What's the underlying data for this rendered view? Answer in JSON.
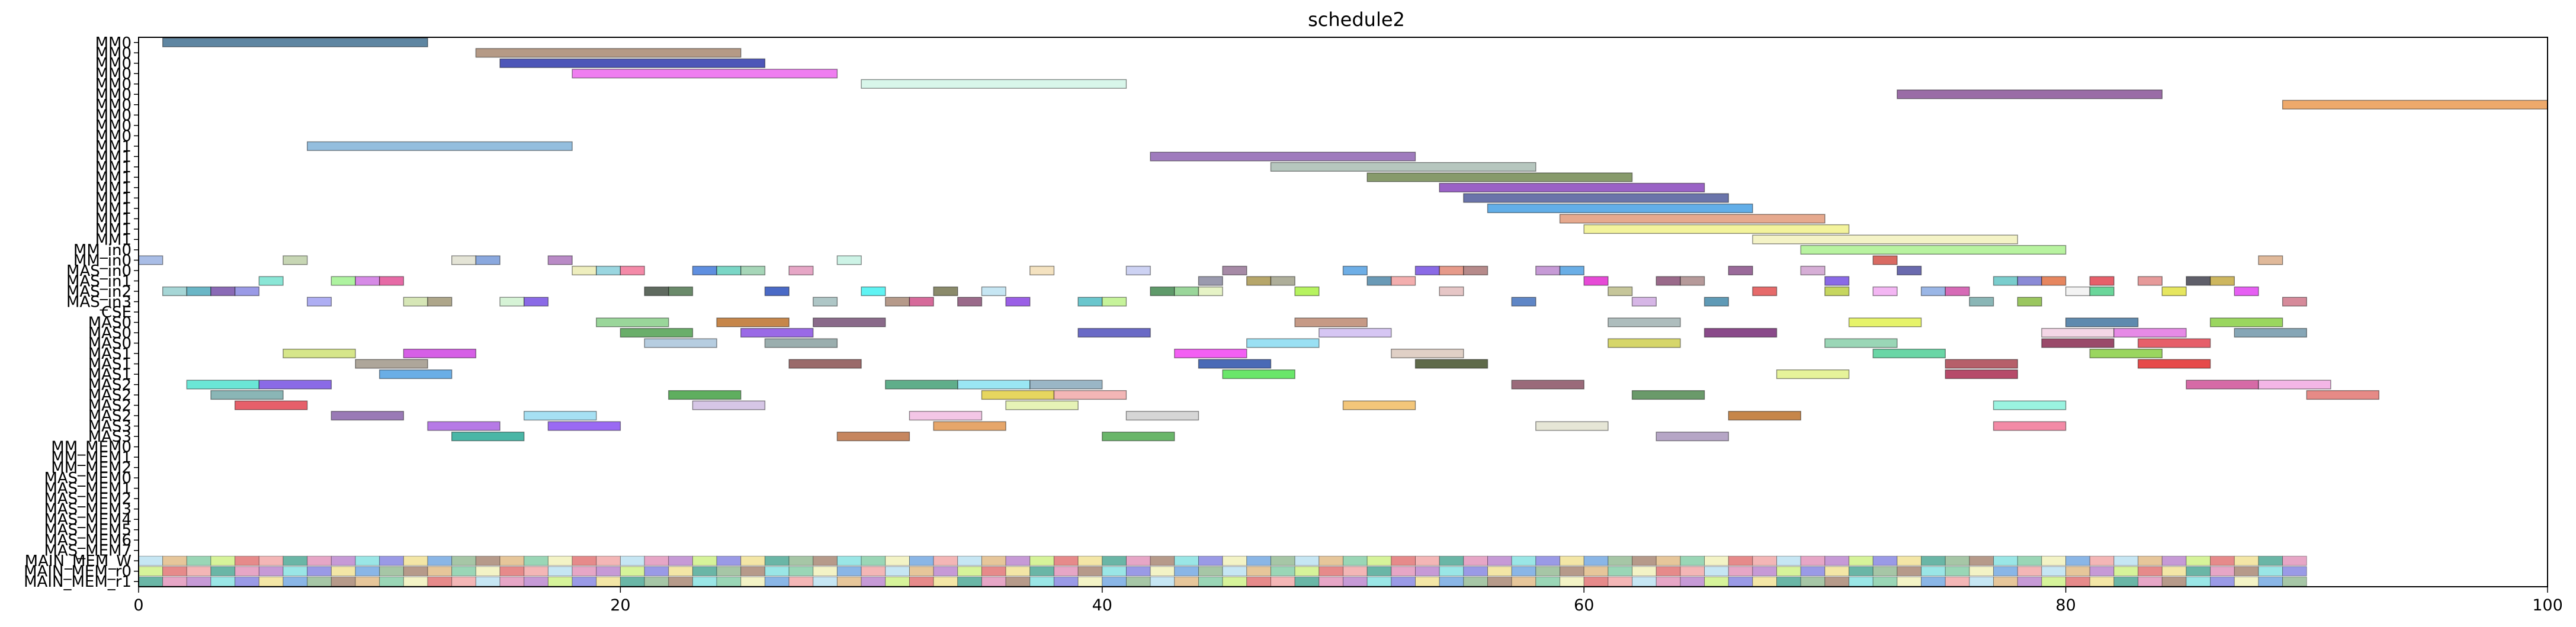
{
  "chart_data": {
    "type": "gantt",
    "title": "schedule2",
    "xlim": [
      0,
      100
    ],
    "x_ticks": [
      0,
      20,
      40,
      60,
      80,
      100
    ],
    "x_tick_labels": [
      "0",
      "20",
      "40",
      "60",
      "80",
      "100"
    ],
    "y_labels": [
      "MM0",
      "MM0",
      "MM0",
      "MM0",
      "MM0",
      "MM0",
      "MM0",
      "MM0",
      "MM0",
      "MM0",
      "MM1",
      "MM1",
      "MM1",
      "MM1",
      "MM1",
      "MM1",
      "MM1",
      "MM1",
      "MM1",
      "MM1",
      "MM_in0",
      "MM_in0",
      "MAS_in0",
      "MAS_in1",
      "MAS_in2",
      "MAS_in3",
      "CSE",
      "MAS0",
      "MAS0",
      "MAS0",
      "MAS1",
      "MAS1",
      "MAS1",
      "MAS2",
      "MAS2",
      "MAS2",
      "MAS2",
      "MAS3",
      "MAS3",
      "MM_MEM0",
      "MM_MEM1",
      "MM_MEM2",
      "MAS_MEM0",
      "MAS_MEM1",
      "MAS_MEM2",
      "MAS_MEM3",
      "MAS_MEM4",
      "MAS_MEM5",
      "MAS_MEM6",
      "MAS_MEM7",
      "MAIN_MEM_W",
      "MAIN_MEM_r0",
      "MAIN_MEM_r1"
    ],
    "series": [
      {
        "row": 0,
        "start": 1,
        "end": 12,
        "color": "#5f86a2"
      },
      {
        "row": 1,
        "start": 14,
        "end": 25,
        "color": "#b59a86"
      },
      {
        "row": 2,
        "start": 15,
        "end": 26,
        "color": "#4d56b8"
      },
      {
        "row": 3,
        "start": 18,
        "end": 29,
        "color": "#ef7ef0"
      },
      {
        "row": 4,
        "start": 30,
        "end": 41,
        "color": "#d8f6ea"
      },
      {
        "row": 5,
        "start": 73,
        "end": 84,
        "color": "#9a6ca6"
      },
      {
        "row": 6,
        "start": 89,
        "end": 100,
        "color": "#eea96b"
      },
      {
        "row": 10,
        "start": 7,
        "end": 18,
        "color": "#94bede"
      },
      {
        "row": 11,
        "start": 42,
        "end": 53,
        "color": "#9f7bbd"
      },
      {
        "row": 12,
        "start": 47,
        "end": 58,
        "color": "#b6c6be"
      },
      {
        "row": 13,
        "start": 51,
        "end": 62,
        "color": "#879a6b"
      },
      {
        "row": 14,
        "start": 54,
        "end": 65,
        "color": "#9a62c6"
      },
      {
        "row": 15,
        "start": 55,
        "end": 66,
        "color": "#6a74aa"
      },
      {
        "row": 16,
        "start": 56,
        "end": 67,
        "color": "#62aee8"
      },
      {
        "row": 17,
        "start": 59,
        "end": 70,
        "color": "#e6a98e"
      },
      {
        "row": 18,
        "start": 60,
        "end": 71,
        "color": "#f3f39c"
      },
      {
        "row": 19,
        "start": 67,
        "end": 78,
        "color": "#f4f3c6"
      },
      {
        "row": 20,
        "start": 69,
        "end": 80,
        "color": "#b8f3a0"
      },
      {
        "row": 21,
        "start": 0,
        "end": 1,
        "color": "#a9bde6"
      },
      {
        "row": 21,
        "start": 6,
        "end": 7,
        "color": "#c7d6b4"
      },
      {
        "row": 21,
        "start": 13,
        "end": 14,
        "color": "#e4e4d6"
      },
      {
        "row": 21,
        "start": 14,
        "end": 15,
        "color": "#8aa8de"
      },
      {
        "row": 21,
        "start": 17,
        "end": 18,
        "color": "#b98ac6"
      },
      {
        "row": 21,
        "start": 29,
        "end": 30,
        "color": "#cdf3e6"
      },
      {
        "row": 21,
        "start": 72,
        "end": 73,
        "color": "#d96a62"
      },
      {
        "row": 21,
        "start": 88,
        "end": 89,
        "color": "#e0b99a"
      },
      {
        "row": 22,
        "start": 18,
        "end": 19,
        "color": "#eeeebe"
      },
      {
        "row": 22,
        "start": 19,
        "end": 20,
        "color": "#9ad6e0"
      },
      {
        "row": 22,
        "start": 20,
        "end": 21,
        "color": "#f48aa8"
      },
      {
        "row": 22,
        "start": 23,
        "end": 24,
        "color": "#5f8fe0"
      },
      {
        "row": 22,
        "start": 24,
        "end": 25,
        "color": "#7ad6c6"
      },
      {
        "row": 22,
        "start": 25,
        "end": 26,
        "color": "#a6d6b8"
      },
      {
        "row": 22,
        "start": 27,
        "end": 28,
        "color": "#e6a6c6"
      },
      {
        "row": 22,
        "start": 37,
        "end": 38,
        "color": "#f4e2c0"
      },
      {
        "row": 22,
        "start": 41,
        "end": 42,
        "color": "#cdd2f3"
      },
      {
        "row": 22,
        "start": 45,
        "end": 46,
        "color": "#a68aa6"
      },
      {
        "row": 22,
        "start": 50,
        "end": 51,
        "color": "#6eaee6"
      },
      {
        "row": 22,
        "start": 53,
        "end": 54,
        "color": "#8a6ae6"
      },
      {
        "row": 22,
        "start": 54,
        "end": 55,
        "color": "#e69a8a"
      },
      {
        "row": 22,
        "start": 55,
        "end": 56,
        "color": "#b68a8a"
      },
      {
        "row": 22,
        "start": 58,
        "end": 59,
        "color": "#c69ad6"
      },
      {
        "row": 22,
        "start": 59,
        "end": 60,
        "color": "#6aaee6"
      },
      {
        "row": 22,
        "start": 66,
        "end": 67,
        "color": "#9a6a9a"
      },
      {
        "row": 22,
        "start": 69,
        "end": 70,
        "color": "#d6aed6"
      },
      {
        "row": 22,
        "start": 73,
        "end": 74,
        "color": "#6a6aae"
      },
      {
        "row": 23,
        "start": 5,
        "end": 6,
        "color": "#8ae6d6"
      },
      {
        "row": 23,
        "start": 8,
        "end": 9,
        "color": "#aef3a0"
      },
      {
        "row": 23,
        "start": 9,
        "end": 10,
        "color": "#d68ae6"
      },
      {
        "row": 23,
        "start": 10,
        "end": 11,
        "color": "#e66aa6"
      },
      {
        "row": 23,
        "start": 44,
        "end": 45,
        "color": "#9a9aae"
      },
      {
        "row": 23,
        "start": 46,
        "end": 47,
        "color": "#b6a66a"
      },
      {
        "row": 23,
        "start": 47,
        "end": 48,
        "color": "#aeae9a"
      },
      {
        "row": 23,
        "start": 51,
        "end": 52,
        "color": "#6a9ab6"
      },
      {
        "row": 23,
        "start": 52,
        "end": 53,
        "color": "#f3aeae"
      },
      {
        "row": 23,
        "start": 60,
        "end": 61,
        "color": "#e64ad6"
      },
      {
        "row": 23,
        "start": 63,
        "end": 64,
        "color": "#9a6a8a"
      },
      {
        "row": 23,
        "start": 64,
        "end": 65,
        "color": "#b69a9a"
      },
      {
        "row": 23,
        "start": 70,
        "end": 71,
        "color": "#8a6ae6"
      },
      {
        "row": 23,
        "start": 77,
        "end": 78,
        "color": "#7acdcd"
      },
      {
        "row": 23,
        "start": 78,
        "end": 79,
        "color": "#8a8ad6"
      },
      {
        "row": 23,
        "start": 79,
        "end": 80,
        "color": "#e6865f"
      },
      {
        "row": 23,
        "start": 81,
        "end": 82,
        "color": "#e65f6a"
      },
      {
        "row": 23,
        "start": 83,
        "end": 84,
        "color": "#e69a9a"
      },
      {
        "row": 23,
        "start": 85,
        "end": 86,
        "color": "#5f5f6a"
      },
      {
        "row": 23,
        "start": 86,
        "end": 87,
        "color": "#cdb65f"
      },
      {
        "row": 24,
        "start": 1,
        "end": 2,
        "color": "#a6d6d6"
      },
      {
        "row": 24,
        "start": 2,
        "end": 3,
        "color": "#6ab6c6"
      },
      {
        "row": 24,
        "start": 3,
        "end": 4,
        "color": "#8a6ab6"
      },
      {
        "row": 24,
        "start": 4,
        "end": 5,
        "color": "#9a9ae6"
      },
      {
        "row": 24,
        "start": 21,
        "end": 22,
        "color": "#5f6a5f"
      },
      {
        "row": 24,
        "start": 22,
        "end": 23,
        "color": "#6a8a6a"
      },
      {
        "row": 24,
        "start": 26,
        "end": 27,
        "color": "#4a6ac6"
      },
      {
        "row": 24,
        "start": 30,
        "end": 31,
        "color": "#5ff3f3"
      },
      {
        "row": 24,
        "start": 33,
        "end": 34,
        "color": "#8a8a6a"
      },
      {
        "row": 24,
        "start": 35,
        "end": 36,
        "color": "#c6e6f3"
      },
      {
        "row": 24,
        "start": 42,
        "end": 43,
        "color": "#5f9a6a"
      },
      {
        "row": 24,
        "start": 43,
        "end": 44,
        "color": "#9ad69a"
      },
      {
        "row": 24,
        "start": 44,
        "end": 45,
        "color": "#e6f3c6"
      },
      {
        "row": 24,
        "start": 48,
        "end": 49,
        "color": "#b6f35f"
      },
      {
        "row": 24,
        "start": 54,
        "end": 55,
        "color": "#e6c6c6"
      },
      {
        "row": 24,
        "start": 61,
        "end": 62,
        "color": "#c6c69a"
      },
      {
        "row": 24,
        "start": 67,
        "end": 68,
        "color": "#e66a6a"
      },
      {
        "row": 24,
        "start": 70,
        "end": 71,
        "color": "#c6d65f"
      },
      {
        "row": 24,
        "start": 72,
        "end": 73,
        "color": "#f3b6f3"
      },
      {
        "row": 24,
        "start": 74,
        "end": 75,
        "color": "#9ab6e6"
      },
      {
        "row": 24,
        "start": 75,
        "end": 76,
        "color": "#d66ab6"
      },
      {
        "row": 24,
        "start": 80,
        "end": 81,
        "color": "#f3f3f3"
      },
      {
        "row": 24,
        "start": 81,
        "end": 82,
        "color": "#6ad69a"
      },
      {
        "row": 24,
        "start": 84,
        "end": 85,
        "color": "#e6e65f"
      },
      {
        "row": 24,
        "start": 87,
        "end": 88,
        "color": "#e65ff3"
      },
      {
        "row": 25,
        "start": 7,
        "end": 8,
        "color": "#aeaef3"
      },
      {
        "row": 25,
        "start": 11,
        "end": 12,
        "color": "#d6e6b6"
      },
      {
        "row": 25,
        "start": 12,
        "end": 13,
        "color": "#aea68a"
      },
      {
        "row": 25,
        "start": 15,
        "end": 16,
        "color": "#d6f3d6"
      },
      {
        "row": 25,
        "start": 16,
        "end": 17,
        "color": "#8a6ae6"
      },
      {
        "row": 25,
        "start": 28,
        "end": 29,
        "color": "#aec6c6"
      },
      {
        "row": 25,
        "start": 31,
        "end": 32,
        "color": "#b69a8a"
      },
      {
        "row": 25,
        "start": 32,
        "end": 33,
        "color": "#d66a9a"
      },
      {
        "row": 25,
        "start": 34,
        "end": 35,
        "color": "#9a6a8a"
      },
      {
        "row": 25,
        "start": 36,
        "end": 37,
        "color": "#9a5fe6"
      },
      {
        "row": 25,
        "start": 39,
        "end": 40,
        "color": "#6ac6cd"
      },
      {
        "row": 25,
        "start": 40,
        "end": 41,
        "color": "#c6f39a"
      },
      {
        "row": 25,
        "start": 57,
        "end": 58,
        "color": "#5f86c6"
      },
      {
        "row": 25,
        "start": 62,
        "end": 63,
        "color": "#d6b6e6"
      },
      {
        "row": 25,
        "start": 65,
        "end": 66,
        "color": "#5f9ab6"
      },
      {
        "row": 25,
        "start": 76,
        "end": 77,
        "color": "#8ab6b6"
      },
      {
        "row": 25,
        "start": 78,
        "end": 79,
        "color": "#9ac65f"
      },
      {
        "row": 25,
        "start": 89,
        "end": 90,
        "color": "#d68a9a"
      },
      {
        "row": 27,
        "start": 19,
        "end": 22,
        "color": "#9ad69a"
      },
      {
        "row": 27,
        "start": 24,
        "end": 27,
        "color": "#c6864a"
      },
      {
        "row": 27,
        "start": 28,
        "end": 31,
        "color": "#8a6a8a"
      },
      {
        "row": 27,
        "start": 48,
        "end": 51,
        "color": "#c69a86"
      },
      {
        "row": 27,
        "start": 61,
        "end": 64,
        "color": "#aebdbd"
      },
      {
        "row": 27,
        "start": 71,
        "end": 74,
        "color": "#e6f36a"
      },
      {
        "row": 27,
        "start": 80,
        "end": 83,
        "color": "#5f8aae"
      },
      {
        "row": 27,
        "start": 86,
        "end": 89,
        "color": "#9ad65f"
      },
      {
        "row": 28,
        "start": 20,
        "end": 23,
        "color": "#6aae6a"
      },
      {
        "row": 28,
        "start": 25,
        "end": 28,
        "color": "#9a6ae6"
      },
      {
        "row": 28,
        "start": 39,
        "end": 42,
        "color": "#6a6ac6"
      },
      {
        "row": 28,
        "start": 49,
        "end": 52,
        "color": "#d6c6f3"
      },
      {
        "row": 28,
        "start": 65,
        "end": 68,
        "color": "#8a4a8a"
      },
      {
        "row": 28,
        "start": 79,
        "end": 82,
        "color": "#f3d6e6"
      },
      {
        "row": 28,
        "start": 82,
        "end": 85,
        "color": "#e68ae6"
      },
      {
        "row": 28,
        "start": 87,
        "end": 90,
        "color": "#86a6b6"
      },
      {
        "row": 29,
        "start": 21,
        "end": 24,
        "color": "#b6cde0"
      },
      {
        "row": 29,
        "start": 26,
        "end": 29,
        "color": "#9aaeae"
      },
      {
        "row": 29,
        "start": 46,
        "end": 49,
        "color": "#9ae0f3"
      },
      {
        "row": 29,
        "start": 61,
        "end": 64,
        "color": "#d6d66a"
      },
      {
        "row": 29,
        "start": 70,
        "end": 73,
        "color": "#9ad6b6"
      },
      {
        "row": 29,
        "start": 79,
        "end": 82,
        "color": "#9a4a6a"
      },
      {
        "row": 29,
        "start": 83,
        "end": 86,
        "color": "#e65f6a"
      },
      {
        "row": 30,
        "start": 6,
        "end": 9,
        "color": "#d6e68a"
      },
      {
        "row": 30,
        "start": 11,
        "end": 14,
        "color": "#d65fe6"
      },
      {
        "row": 30,
        "start": 43,
        "end": 46,
        "color": "#f35ff3"
      },
      {
        "row": 30,
        "start": 52,
        "end": 55,
        "color": "#e0d0c6"
      },
      {
        "row": 30,
        "start": 72,
        "end": 75,
        "color": "#6ad6a6"
      },
      {
        "row": 30,
        "start": 81,
        "end": 84,
        "color": "#9ad65f"
      },
      {
        "row": 31,
        "start": 9,
        "end": 12,
        "color": "#aea69a"
      },
      {
        "row": 31,
        "start": 27,
        "end": 30,
        "color": "#9a6a6a"
      },
      {
        "row": 31,
        "start": 44,
        "end": 47,
        "color": "#4a6ab6"
      },
      {
        "row": 31,
        "start": 53,
        "end": 56,
        "color": "#5f6a4a"
      },
      {
        "row": 31,
        "start": 75,
        "end": 78,
        "color": "#b65f6a"
      },
      {
        "row": 31,
        "start": 83,
        "end": 86,
        "color": "#e64a4a"
      },
      {
        "row": 32,
        "start": 10,
        "end": 13,
        "color": "#6aaee6"
      },
      {
        "row": 32,
        "start": 45,
        "end": 48,
        "color": "#6ae66a"
      },
      {
        "row": 32,
        "start": 68,
        "end": 71,
        "color": "#e6f39a"
      },
      {
        "row": 32,
        "start": 75,
        "end": 78,
        "color": "#b64a6a"
      },
      {
        "row": 33,
        "start": 2,
        "end": 5,
        "color": "#6ae6d6"
      },
      {
        "row": 33,
        "start": 5,
        "end": 8,
        "color": "#8a6ae6"
      },
      {
        "row": 33,
        "start": 34,
        "end": 37,
        "color": "#9ae6f3"
      },
      {
        "row": 33,
        "start": 37,
        "end": 40,
        "color": "#9ab6c6"
      },
      {
        "row": 33,
        "start": 31,
        "end": 34,
        "color": "#5fae8a"
      },
      {
        "row": 33,
        "start": 57,
        "end": 60,
        "color": "#9a6a7a"
      },
      {
        "row": 33,
        "start": 85,
        "end": 88,
        "color": "#d66aa6"
      },
      {
        "row": 33,
        "start": 88,
        "end": 91,
        "color": "#f3b6e6"
      },
      {
        "row": 34,
        "start": 3,
        "end": 6,
        "color": "#8ab6b6"
      },
      {
        "row": 34,
        "start": 22,
        "end": 25,
        "color": "#5fae5f"
      },
      {
        "row": 34,
        "start": 35,
        "end": 38,
        "color": "#e6d65f"
      },
      {
        "row": 34,
        "start": 38,
        "end": 41,
        "color": "#f3b6b6"
      },
      {
        "row": 34,
        "start": 62,
        "end": 65,
        "color": "#6a9a6a"
      },
      {
        "row": 34,
        "start": 90,
        "end": 93,
        "color": "#e68a86"
      },
      {
        "row": 35,
        "start": 4,
        "end": 7,
        "color": "#e65f6a"
      },
      {
        "row": 35,
        "start": 23,
        "end": 26,
        "color": "#d6c6e6"
      },
      {
        "row": 35,
        "start": 36,
        "end": 39,
        "color": "#e6f3b6"
      },
      {
        "row": 35,
        "start": 50,
        "end": 53,
        "color": "#f3c67a"
      },
      {
        "row": 35,
        "start": 77,
        "end": 80,
        "color": "#9af3e0"
      },
      {
        "row": 36,
        "start": 8,
        "end": 11,
        "color": "#9a7ab6"
      },
      {
        "row": 36,
        "start": 16,
        "end": 19,
        "color": "#a6e0f3"
      },
      {
        "row": 36,
        "start": 32,
        "end": 35,
        "color": "#f3c6e6"
      },
      {
        "row": 36,
        "start": 41,
        "end": 44,
        "color": "#d6d6d6"
      },
      {
        "row": 36,
        "start": 66,
        "end": 69,
        "color": "#c6864a"
      },
      {
        "row": 37,
        "start": 12,
        "end": 15,
        "color": "#b67ae6"
      },
      {
        "row": 37,
        "start": 17,
        "end": 20,
        "color": "#9a6af3"
      },
      {
        "row": 37,
        "start": 33,
        "end": 36,
        "color": "#e6a66a"
      },
      {
        "row": 37,
        "start": 58,
        "end": 61,
        "color": "#e6e6d6"
      },
      {
        "row": 37,
        "start": 77,
        "end": 80,
        "color": "#f38aa6"
      },
      {
        "row": 38,
        "start": 13,
        "end": 16,
        "color": "#4ab6a6"
      },
      {
        "row": 38,
        "start": 29,
        "end": 32,
        "color": "#c6865f"
      },
      {
        "row": 38,
        "start": 40,
        "end": 43,
        "color": "#6ab66a"
      },
      {
        "row": 38,
        "start": 63,
        "end": 66,
        "color": "#b6a6c6"
      }
    ],
    "mem_rows": [
      50,
      51,
      52
    ],
    "mem_xlim": [
      0,
      90
    ],
    "grid": false,
    "legend": false
  }
}
